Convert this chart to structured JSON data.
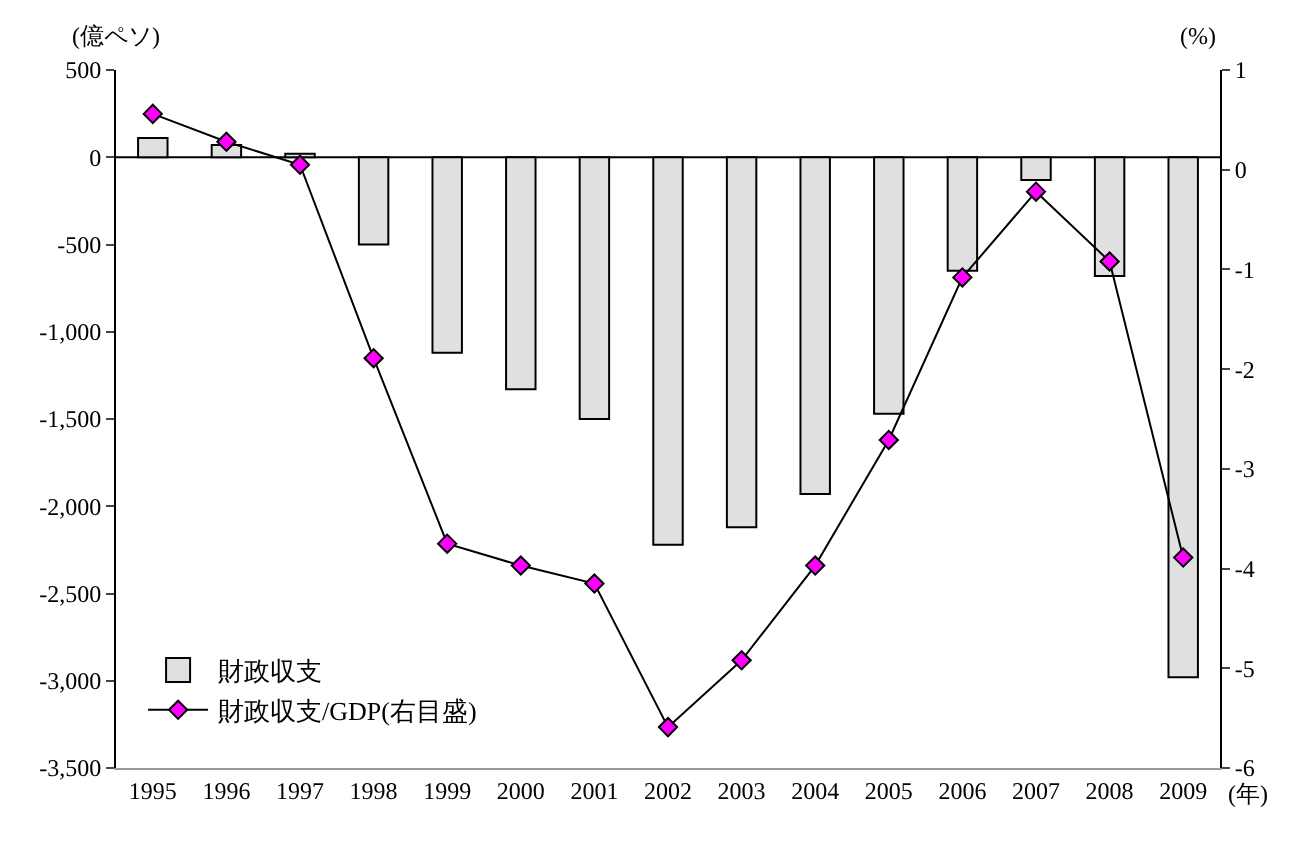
{
  "chart_data": {
    "type": "bar",
    "ylabel": "(億ペソ)",
    "y2label": "(%)",
    "xlabel": "(年)",
    "categories": [
      "1995",
      "1996",
      "1997",
      "1998",
      "1999",
      "2000",
      "2001",
      "2002",
      "2003",
      "2004",
      "2005",
      "2006",
      "2007",
      "2008",
      "2009"
    ],
    "series": [
      {
        "name": "財政収支",
        "color": "#e0e0e0",
        "values": [
          110,
          70,
          20,
          -500,
          -1120,
          -1330,
          -1500,
          -2220,
          -2120,
          -1930,
          -1470,
          -650,
          -130,
          -680,
          -2980
        ]
      },
      {
        "name": "財政収支/GDP(右目盛)",
        "type": "line",
        "axis": "y2",
        "color": "#ff00ff",
        "marker": "diamond",
        "values": [
          0.56,
          0.28,
          0.05,
          -1.89,
          -3.75,
          -3.97,
          -4.15,
          -5.59,
          -4.92,
          -3.97,
          -2.71,
          -1.08,
          -0.22,
          -0.92,
          -3.89
        ]
      }
    ],
    "ylim": [
      -3500,
      500
    ],
    "yticks": [
      {
        "value": 500,
        "label": "500"
      },
      {
        "value": 0,
        "label": "0"
      },
      {
        "value": -500,
        "label": "-500"
      },
      {
        "value": -1000,
        "label": "-1,000"
      },
      {
        "value": -1500,
        "label": "-1,500"
      },
      {
        "value": -2000,
        "label": "-2,000"
      },
      {
        "value": -2500,
        "label": "-2,500"
      },
      {
        "value": -3000,
        "label": "-3,000"
      },
      {
        "value": -3500,
        "label": "-3,500"
      }
    ],
    "y2lim": [
      -6,
      1
    ],
    "y2ticks": [
      1,
      0,
      -1,
      -2,
      -3,
      -4,
      -5,
      -6
    ],
    "ref_lines": [
      {
        "axis": "y",
        "value": 0,
        "color": "#000000"
      }
    ],
    "grid": false,
    "legend": "bottom left"
  }
}
